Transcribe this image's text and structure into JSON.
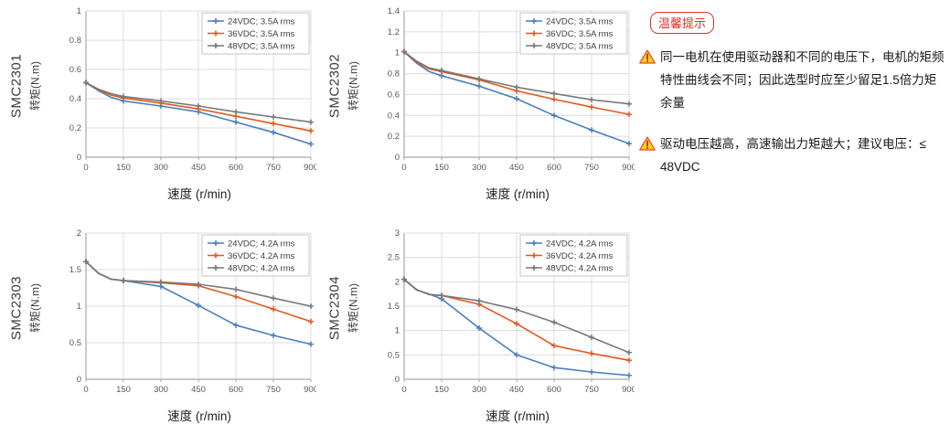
{
  "palette": {
    "blue": "#4a7ebb",
    "orange": "#e2581d",
    "gray": "#77787a",
    "grid": "#dcdcdc",
    "axis": "#a9a9a9",
    "tick_text": "#595959",
    "legend_text": "#3d3d3d",
    "tip_red": "#d9342c",
    "warn_yellow": "#ffd21c"
  },
  "tips": {
    "badge": "温馨提示",
    "notes": [
      "同一电机在使用驱动器和不同的电压下，电机的矩频特性曲线会不同；因此选型时应至少留足1.5倍力矩余量",
      "驱动电压越高，高速输出力矩越大；建议电压：≤ 48VDC"
    ]
  },
  "chart_data": [
    {
      "type": "line",
      "model": "SMC2301",
      "ylabel": "转矩(N.m)",
      "xlabel": "速度 (r/min)",
      "xlim": [
        0,
        900
      ],
      "ylim": [
        0,
        1
      ],
      "grid": true,
      "legend_position": "top-right",
      "x": [
        0,
        50,
        100,
        150,
        300,
        450,
        600,
        750,
        900
      ],
      "marker_x": [
        0,
        150,
        300,
        450,
        600,
        750,
        900
      ],
      "xtick_labels": [
        "0",
        "150",
        "300",
        "450",
        "600",
        "750",
        "900"
      ],
      "ytick_labels": [
        "0",
        "0.2",
        "0.4",
        "0.6",
        "0.8",
        "1"
      ],
      "series": [
        {
          "name": "24VDC; 3.5A rms",
          "color": "#4a7ebb",
          "values": [
            0.51,
            0.455,
            0.41,
            0.385,
            0.35,
            0.31,
            0.24,
            0.17,
            0.09
          ]
        },
        {
          "name": "36VDC; 3.5A rms",
          "color": "#e2581d",
          "values": [
            0.51,
            0.46,
            0.425,
            0.405,
            0.37,
            0.33,
            0.28,
            0.23,
            0.18
          ]
        },
        {
          "name": "48VDC; 3.5A rms",
          "color": "#77787a",
          "values": [
            0.51,
            0.465,
            0.435,
            0.415,
            0.385,
            0.35,
            0.31,
            0.275,
            0.24
          ]
        }
      ]
    },
    {
      "type": "line",
      "model": "SMC2302",
      "ylabel": "转矩(N.m)",
      "xlabel": "速度 (r/min)",
      "xlim": [
        0,
        900
      ],
      "ylim": [
        0,
        1.4
      ],
      "grid": true,
      "legend_position": "top-right",
      "x": [
        0,
        50,
        100,
        150,
        300,
        450,
        600,
        750,
        900
      ],
      "marker_x": [
        0,
        150,
        300,
        450,
        600,
        750,
        900
      ],
      "xtick_labels": [
        "0",
        "150",
        "300",
        "450",
        "600",
        "750",
        "900"
      ],
      "ytick_labels": [
        "0",
        "0.2",
        "0.4",
        "0.6",
        "0.8",
        "1",
        "1.2",
        "1.4"
      ],
      "series": [
        {
          "name": "24VDC; 3.5A rms",
          "color": "#4a7ebb",
          "values": [
            1.01,
            0.9,
            0.82,
            0.78,
            0.68,
            0.56,
            0.4,
            0.26,
            0.13
          ]
        },
        {
          "name": "36VDC; 3.5A rms",
          "color": "#e2581d",
          "values": [
            1.01,
            0.91,
            0.845,
            0.82,
            0.74,
            0.635,
            0.555,
            0.48,
            0.41
          ]
        },
        {
          "name": "48VDC; 3.5A rms",
          "color": "#77787a",
          "values": [
            1.01,
            0.92,
            0.855,
            0.83,
            0.75,
            0.67,
            0.61,
            0.55,
            0.51
          ]
        }
      ]
    },
    {
      "type": "line",
      "model": "SMC2303",
      "ylabel": "转矩(N.m)",
      "xlabel": "速度 (r/min)",
      "xlim": [
        0,
        900
      ],
      "ylim": [
        0,
        2
      ],
      "grid": true,
      "legend_position": "top-right",
      "x": [
        0,
        50,
        100,
        150,
        300,
        450,
        600,
        750,
        900
      ],
      "marker_x": [
        0,
        150,
        300,
        450,
        600,
        750,
        900
      ],
      "xtick_labels": [
        "0",
        "150",
        "300",
        "450",
        "600",
        "750",
        "900"
      ],
      "ytick_labels": [
        "0",
        "0.5",
        "1",
        "1.5",
        "2"
      ],
      "series": [
        {
          "name": "24VDC; 4.2A rms",
          "color": "#4a7ebb",
          "values": [
            1.61,
            1.45,
            1.37,
            1.35,
            1.27,
            1.01,
            0.74,
            0.6,
            0.48
          ]
        },
        {
          "name": "36VDC; 4.2A rms",
          "color": "#e2581d",
          "values": [
            1.61,
            1.45,
            1.37,
            1.35,
            1.32,
            1.28,
            1.13,
            0.96,
            0.79
          ]
        },
        {
          "name": "48VDC; 4.2A rms",
          "color": "#77787a",
          "values": [
            1.61,
            1.45,
            1.37,
            1.35,
            1.33,
            1.3,
            1.23,
            1.11,
            1.0
          ]
        }
      ]
    },
    {
      "type": "line",
      "model": "SMC2304",
      "ylabel": "转矩(N.m)",
      "xlabel": "速度 (r/min)",
      "xlim": [
        0,
        900
      ],
      "ylim": [
        0,
        3
      ],
      "grid": true,
      "legend_position": "top-right",
      "x": [
        0,
        50,
        100,
        150,
        300,
        450,
        600,
        750,
        900
      ],
      "marker_x": [
        0,
        150,
        300,
        450,
        600,
        750,
        900
      ],
      "xtick_labels": [
        "0",
        "150",
        "300",
        "450",
        "600",
        "750",
        "900"
      ],
      "ytick_labels": [
        "0",
        "0.5",
        "1",
        "1.5",
        "2",
        "2.5",
        "3"
      ],
      "series": [
        {
          "name": "24VDC; 4.2A rms",
          "color": "#4a7ebb",
          "values": [
            2.05,
            1.83,
            1.75,
            1.65,
            1.05,
            0.5,
            0.24,
            0.15,
            0.08
          ]
        },
        {
          "name": "36VDC; 4.2A rms",
          "color": "#e2581d",
          "values": [
            2.05,
            1.84,
            1.74,
            1.72,
            1.54,
            1.14,
            0.69,
            0.53,
            0.39
          ]
        },
        {
          "name": "48VDC; 4.2A rms",
          "color": "#77787a",
          "values": [
            2.05,
            1.84,
            1.74,
            1.72,
            1.61,
            1.43,
            1.17,
            0.86,
            0.55
          ]
        }
      ]
    }
  ]
}
